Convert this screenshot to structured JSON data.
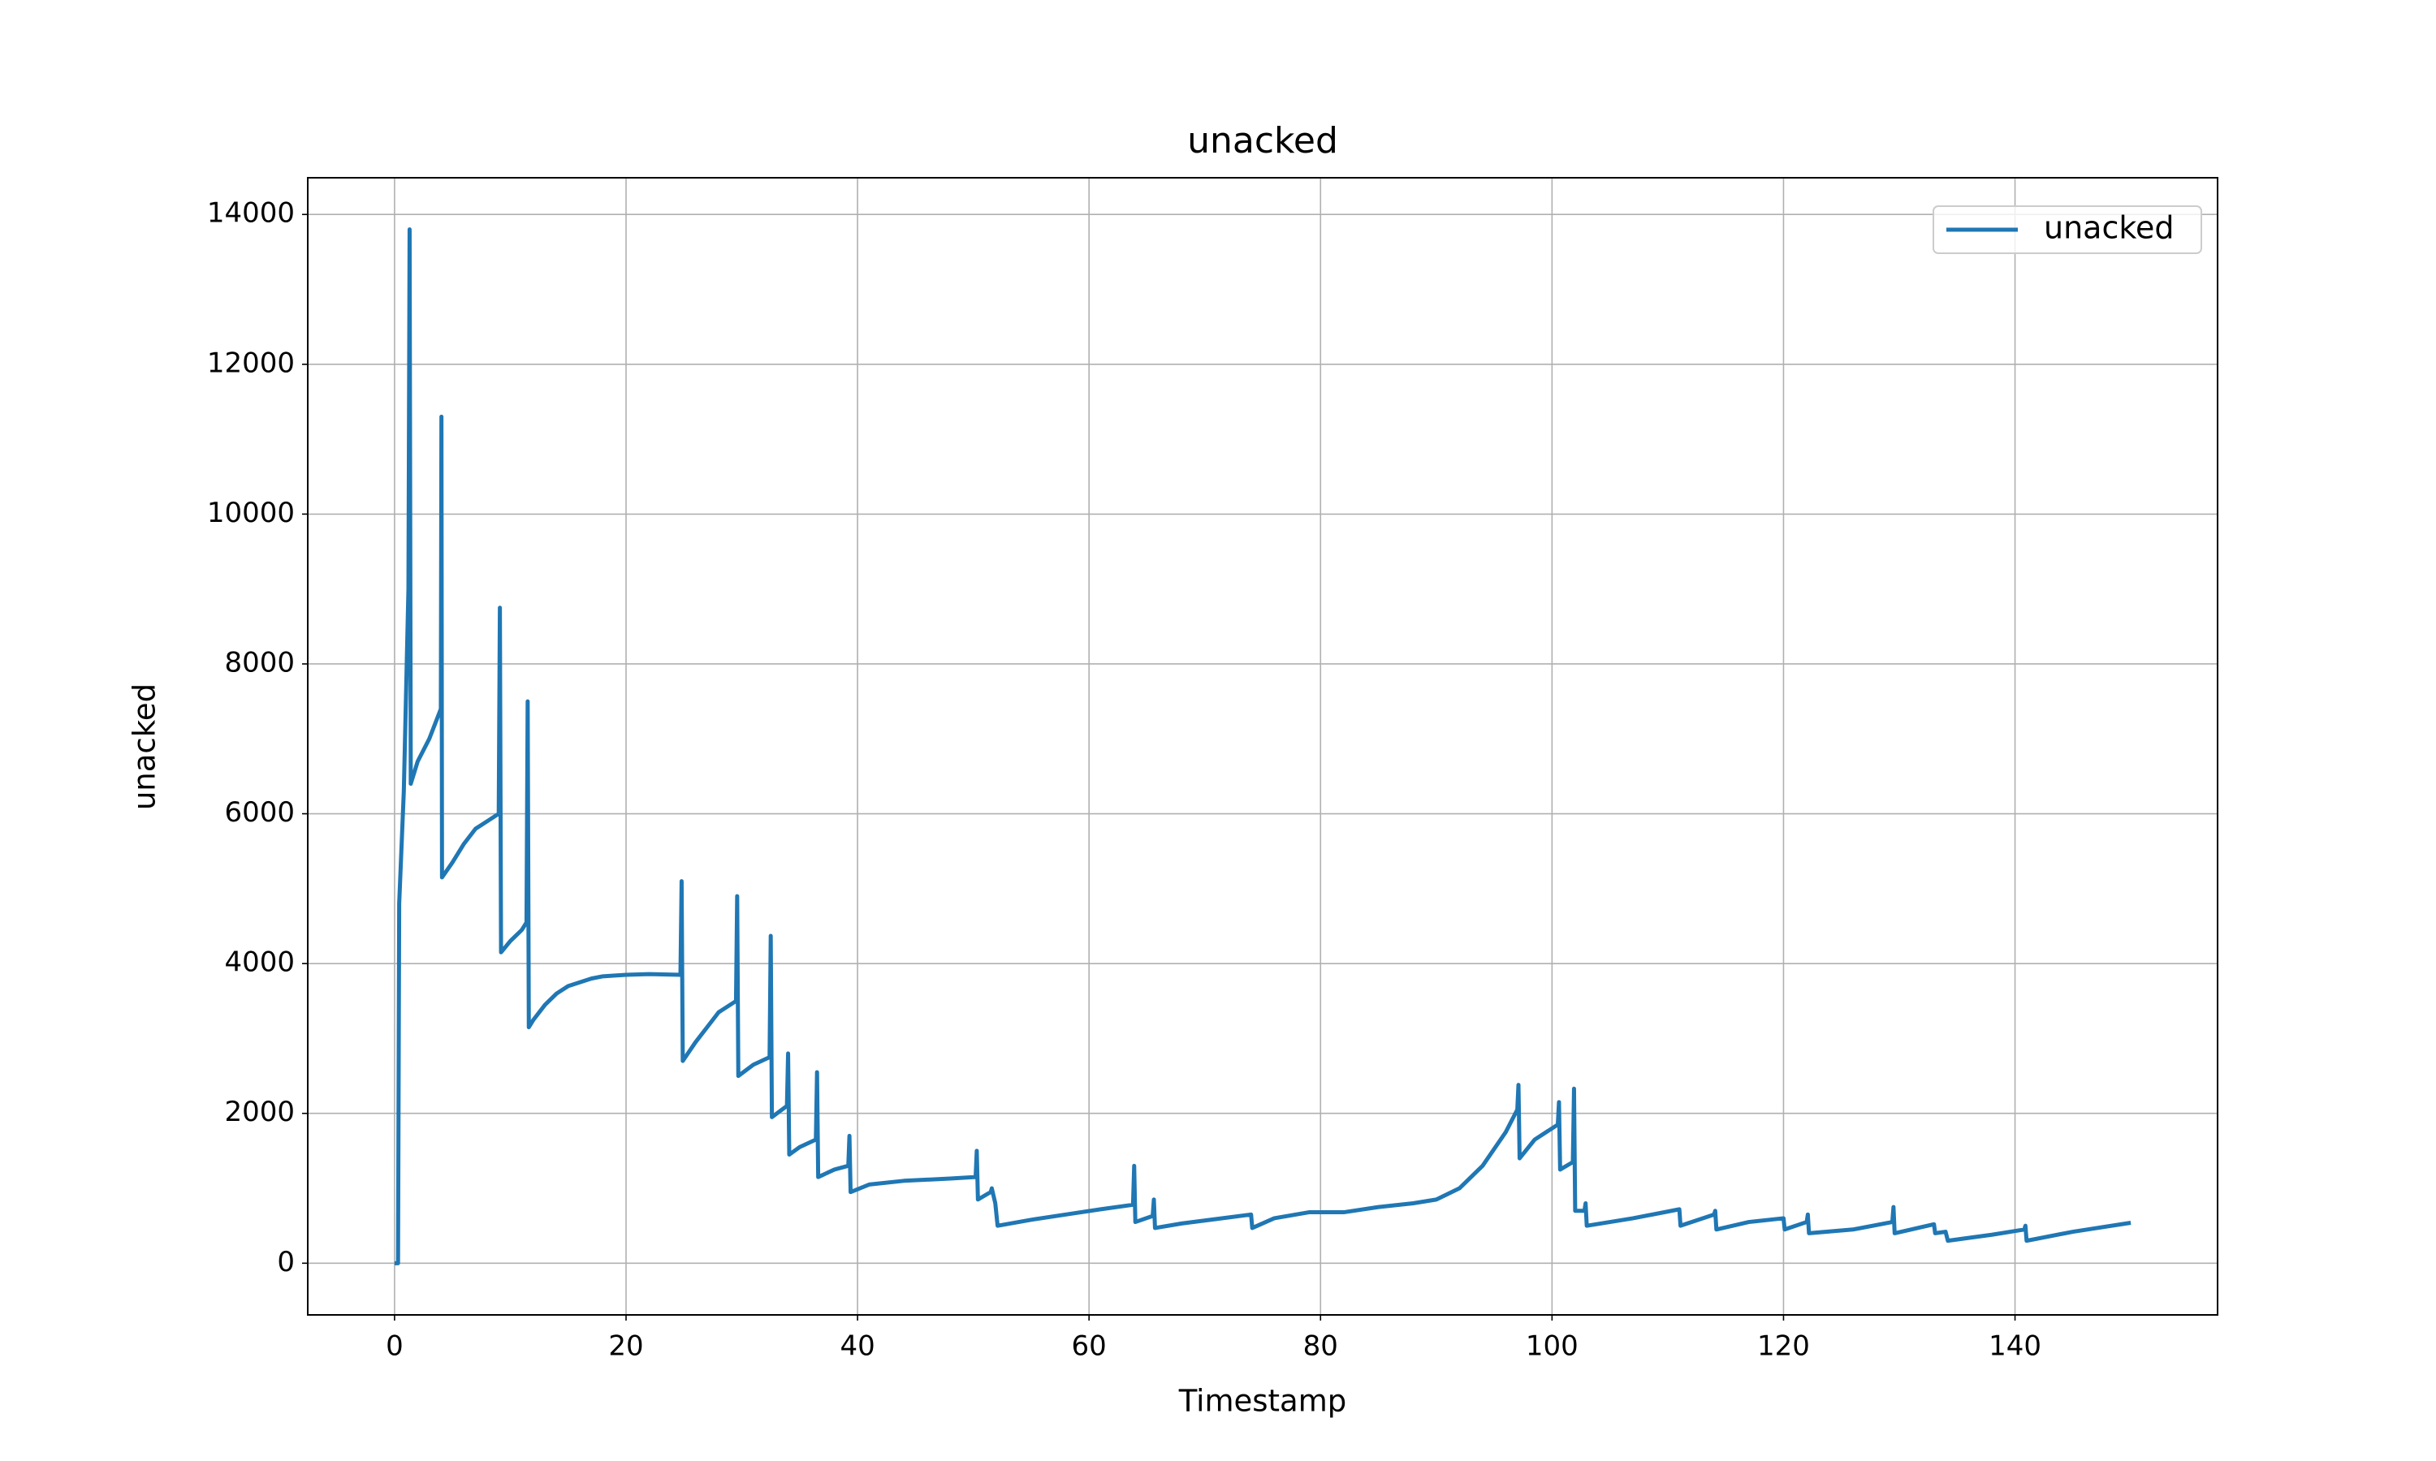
{
  "chart_data": {
    "type": "line",
    "title": "unacked",
    "x_label": "Timestamp",
    "y_label": "unacked",
    "x": [
      0,
      0.3,
      0.4,
      0.8,
      1.2,
      1.3,
      1.4,
      2,
      3,
      4,
      4.05,
      4.1,
      5,
      6,
      7,
      8,
      9,
      9.1,
      9.2,
      10,
      11,
      11.4,
      11.5,
      11.6,
      12,
      13,
      14,
      15,
      16,
      17,
      18,
      20,
      22,
      24.7,
      24.8,
      24.9,
      26,
      27,
      28,
      29.5,
      29.6,
      29.7,
      31,
      32.4,
      32.5,
      32.6,
      33.9,
      34,
      34.1,
      35,
      36.4,
      36.5,
      36.6,
      38,
      39.2,
      39.3,
      39.4,
      41,
      44,
      48,
      50.2,
      50.3,
      50.4,
      51.5,
      51.6,
      51.9,
      52.1,
      55,
      58,
      61,
      63.8,
      63.9,
      64,
      65.5,
      65.6,
      65.7,
      68,
      71,
      74,
      74.1,
      76,
      79,
      82,
      85,
      88,
      90,
      92,
      94,
      96,
      97,
      97.1,
      97.2,
      98.5,
      100,
      100.5,
      100.6,
      100.7,
      101.8,
      101.9,
      102,
      102.8,
      102.9,
      103,
      107,
      111,
      111.1,
      114,
      114.1,
      114.2,
      117,
      120,
      120.1,
      122,
      122.1,
      122.2,
      126,
      129.4,
      129.5,
      129.6,
      133,
      133.1,
      134,
      134.2,
      138,
      140.8,
      140.9,
      141,
      145,
      150
    ],
    "series": [
      {
        "name": "unacked",
        "color": "#1f77b4",
        "values": [
          0,
          0,
          4800,
          6300,
          9000,
          13800,
          6400,
          6700,
          7000,
          7400,
          11300,
          5150,
          5350,
          5600,
          5800,
          5900,
          6000,
          8750,
          4150,
          4300,
          4450,
          4550,
          7500,
          3150,
          3250,
          3450,
          3600,
          3700,
          3750,
          3800,
          3830,
          3850,
          3860,
          3850,
          5100,
          2700,
          2950,
          3150,
          3350,
          3500,
          4900,
          2500,
          2650,
          2750,
          4370,
          1950,
          2100,
          2800,
          1450,
          1550,
          1650,
          2550,
          1150,
          1250,
          1300,
          1700,
          950,
          1050,
          1100,
          1130,
          1150,
          1500,
          850,
          950,
          1000,
          800,
          500,
          580,
          650,
          720,
          780,
          1300,
          550,
          630,
          850,
          470,
          530,
          590,
          650,
          470,
          600,
          680,
          680,
          750,
          800,
          850,
          1000,
          1300,
          1750,
          2050,
          2380,
          1400,
          1650,
          1800,
          1850,
          2150,
          1250,
          1350,
          2330,
          700,
          700,
          800,
          500,
          600,
          720,
          500,
          650,
          700,
          450,
          550,
          600,
          450,
          550,
          650,
          400,
          450,
          550,
          750,
          400,
          520,
          400,
          420,
          300,
          380,
          450,
          500,
          300,
          420,
          540
        ]
      }
    ],
    "xlim": [
      -7.5,
      157.5
    ],
    "ylim": [
      -690,
      14490
    ],
    "xticks": [
      0,
      20,
      40,
      60,
      80,
      100,
      120,
      140
    ],
    "yticks": [
      0,
      2000,
      4000,
      6000,
      8000,
      10000,
      12000,
      14000
    ],
    "grid": true,
    "legend": "upper right"
  }
}
